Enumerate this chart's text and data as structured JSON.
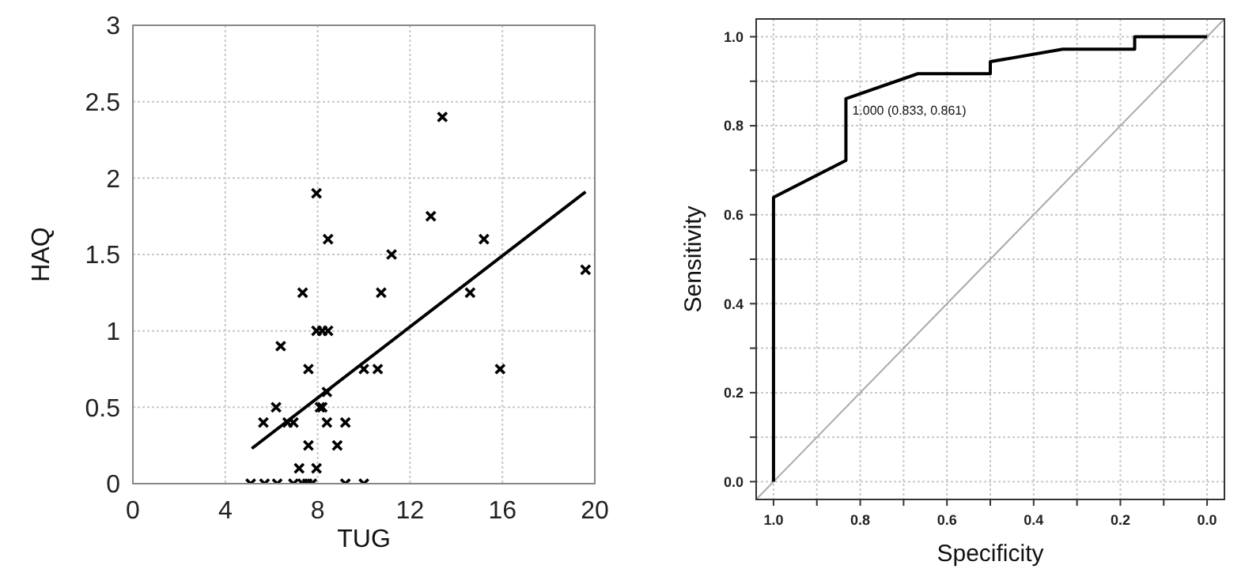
{
  "chart_data": [
    {
      "type": "scatter",
      "xlabel": "TUG",
      "ylabel": "HAQ",
      "xlim": [
        0,
        20
      ],
      "ylim": [
        0,
        3
      ],
      "xticks": [
        0,
        4,
        8,
        12,
        16,
        20
      ],
      "yticks": [
        0,
        0.5,
        1,
        1.5,
        2,
        2.5,
        3
      ],
      "grid": true,
      "series": [
        {
          "color": "#000000",
          "marker": "cross",
          "x": [
            13.4,
            7.95,
            12.9,
            8.45,
            15.2,
            11.2,
            7.35,
            10.75,
            14.6,
            19.6,
            7.95,
            8.2,
            8.45,
            6.4,
            7.6,
            10,
            10.6,
            15.9,
            8.4,
            6.2,
            8.1,
            8.2,
            5.65,
            6.7,
            6.95,
            8.4,
            9.2,
            7.6,
            8.85,
            7.2,
            7.95,
            5.1,
            5.7,
            6.25,
            6.95,
            7.35,
            7.55,
            7.75,
            9.2,
            10
          ],
          "values": [
            2.4,
            1.9,
            1.75,
            1.6,
            1.6,
            1.5,
            1.25,
            1.25,
            1.25,
            1.4,
            1,
            1,
            1,
            0.9,
            0.75,
            0.75,
            0.75,
            0.75,
            0.6,
            0.5,
            0.5,
            0.5,
            0.4,
            0.4,
            0.4,
            0.4,
            0.4,
            0.25,
            0.25,
            0.1,
            0.1,
            0,
            0,
            0,
            0,
            0,
            0,
            0,
            0,
            0
          ]
        },
        {
          "type": "line",
          "color": "#000000",
          "x": [
            5.15,
            19.6
          ],
          "values": [
            0.23,
            1.91
          ]
        }
      ]
    },
    {
      "type": "line",
      "xlabel": "Specificity",
      "ylabel": "Sensitivity",
      "xlim": [
        1.04,
        -0.04
      ],
      "ylim": [
        -0.04,
        1.04
      ],
      "xticks": [
        {
          "value": 1,
          "label": "1.0"
        },
        {
          "value": 0.9,
          "label": null
        },
        {
          "value": 0.8,
          "label": "0.8"
        },
        {
          "value": 0.7,
          "label": null
        },
        {
          "value": 0.6,
          "label": "0.6"
        },
        {
          "value": 0.5,
          "label": null
        },
        {
          "value": 0.4,
          "label": "0.4"
        },
        {
          "value": 0.3,
          "label": null
        },
        {
          "value": 0.2,
          "label": "0.2"
        },
        {
          "value": 0.1,
          "label": null
        },
        {
          "value": 0,
          "label": "0.0"
        }
      ],
      "yticks": [
        {
          "value": 0,
          "label": "0.0"
        },
        {
          "value": 0.1,
          "label": null
        },
        {
          "value": 0.2,
          "label": "0.2"
        },
        {
          "value": 0.3,
          "label": null
        },
        {
          "value": 0.4,
          "label": "0.4"
        },
        {
          "value": 0.5,
          "label": null
        },
        {
          "value": 0.6,
          "label": "0.6"
        },
        {
          "value": 0.7,
          "label": null
        },
        {
          "value": 0.8,
          "label": "0.8"
        },
        {
          "value": 0.9,
          "label": null
        },
        {
          "value": 1,
          "label": "1.0"
        }
      ],
      "grid": true,
      "series": [
        {
          "color": "#aaaaaa",
          "x": [
            1.04,
            -0.04
          ],
          "values": [
            -0.04,
            1.04
          ]
        },
        {
          "color": "#000000",
          "x": [
            1,
            1,
            0.833,
            0.833,
            0.667,
            0.5,
            0.5,
            0.333,
            0.167,
            0.167,
            0
          ],
          "values": [
            0,
            0.639,
            0.722,
            0.861,
            0.917,
            0.917,
            0.944,
            0.972,
            0.972,
            1,
            1
          ]
        }
      ],
      "annotations": [
        {
          "text": "1.000 (0.833, 0.861)",
          "x": 0.833,
          "y": 0.861
        }
      ]
    }
  ]
}
